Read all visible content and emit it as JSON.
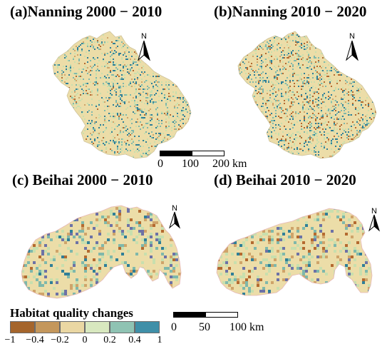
{
  "panels": [
    {
      "id": "a",
      "title": "(a)Nanning 2000 − 2010",
      "seed": 11,
      "hot": 0.012
    },
    {
      "id": "b",
      "title": "(b)Nanning 2010 − 2020",
      "seed": 37,
      "hot": 0.045
    },
    {
      "id": "c",
      "title": "(c) Beihai 2000 − 2010",
      "seed": 73,
      "hot": 0.02
    },
    {
      "id": "d",
      "title": "(d) Beihai 2010 − 2020",
      "seed": 91,
      "hot": 0.03
    }
  ],
  "north_label": "N",
  "scalebars": [
    {
      "id": "nanning",
      "labels": [
        "0",
        "100",
        "200 km"
      ]
    },
    {
      "id": "beihai",
      "labels": [
        "0",
        "50",
        "100 km"
      ]
    }
  ],
  "legend": {
    "title": "Habitat quality changes",
    "classes": [
      {
        "range": [
          -1,
          -0.4
        ],
        "color": "#a5652c"
      },
      {
        "range": [
          -0.4,
          -0.2
        ],
        "color": "#c4975c"
      },
      {
        "range": [
          -0.2,
          0
        ],
        "color": "#ead7a3"
      },
      {
        "range": [
          0,
          0.2
        ],
        "color": "#d8e8bf"
      },
      {
        "range": [
          0.2,
          0.4
        ],
        "color": "#8fc3b3"
      },
      {
        "range": [
          0.4,
          1
        ],
        "color": "#3f8fa8"
      }
    ],
    "tick_labels": [
      "−1",
      "−0.4",
      "−0.2",
      "0",
      "0.2",
      "0.4",
      "1"
    ]
  },
  "colors": {
    "base": "#ecdda8",
    "speck_blue": "#2f7f98",
    "speck_teal": "#7fb8ab",
    "speck_green": "#c8dfae",
    "speck_brown": "#b46a30",
    "speck_tan": "#cfa46a",
    "speck_purple": "#6d72a6",
    "outline": "#cfc39a",
    "sea_line": "#e7b8b8"
  }
}
